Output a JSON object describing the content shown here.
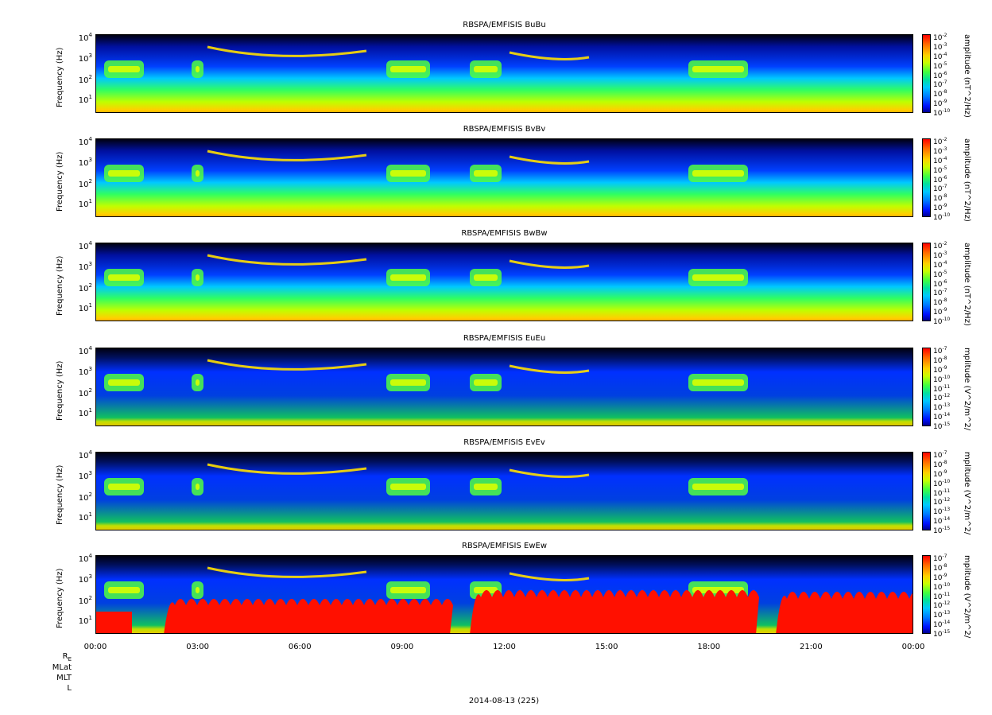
{
  "colors": {
    "background": "#ffffff",
    "axis": "#000000",
    "spectrogram_background": "#000000"
  },
  "chart_data": [
    {
      "type": "heatmap",
      "title": "RBSPA/EMFISIS  BuBu",
      "ylabel": "Frequency (Hz)",
      "yscale": "log",
      "yticks": [
        "10^1",
        "10^2",
        "10^3",
        "10^4"
      ],
      "colorbar_label": "amplitude (nT^2/Hz)",
      "colorbar_ticks": [
        "10^-2",
        "10^-3",
        "10^-4",
        "10^-5",
        "10^-6",
        "10^-7",
        "10^-8",
        "10^-9",
        "10^-10"
      ],
      "xlim": [
        "00:00",
        "00:00"
      ]
    },
    {
      "type": "heatmap",
      "title": "RBSPA/EMFISIS  BvBv",
      "ylabel": "Frequency (Hz)",
      "yscale": "log",
      "yticks": [
        "10^1",
        "10^2",
        "10^3",
        "10^4"
      ],
      "colorbar_label": "amplitude (nT^2/Hz)",
      "colorbar_ticks": [
        "10^-2",
        "10^-3",
        "10^-4",
        "10^-5",
        "10^-6",
        "10^-7",
        "10^-8",
        "10^-9",
        "10^-10"
      ],
      "xlim": [
        "00:00",
        "00:00"
      ]
    },
    {
      "type": "heatmap",
      "title": "RBSPA/EMFISIS  BwBw",
      "ylabel": "Frequency (Hz)",
      "yscale": "log",
      "yticks": [
        "10^1",
        "10^2",
        "10^3",
        "10^4"
      ],
      "colorbar_label": "amplitude (nT^2/Hz)",
      "colorbar_ticks": [
        "10^-2",
        "10^-3",
        "10^-4",
        "10^-5",
        "10^-6",
        "10^-7",
        "10^-8",
        "10^-9",
        "10^-10"
      ],
      "xlim": [
        "00:00",
        "00:00"
      ]
    },
    {
      "type": "heatmap",
      "title": "RBSPA/EMFISIS  EuEu",
      "ylabel": "Frequency (Hz)",
      "yscale": "log",
      "yticks": [
        "10^1",
        "10^2",
        "10^3",
        "10^4"
      ],
      "colorbar_label": "mplitude (V^2/m^2/",
      "colorbar_ticks": [
        "10^-7",
        "10^-8",
        "10^-9",
        "10^-10",
        "10^-11",
        "10^-12",
        "10^-13",
        "10^-14",
        "10^-15"
      ],
      "xlim": [
        "00:00",
        "00:00"
      ]
    },
    {
      "type": "heatmap",
      "title": "RBSPA/EMFISIS  EvEv",
      "ylabel": "Frequency (Hz)",
      "yscale": "log",
      "yticks": [
        "10^1",
        "10^2",
        "10^3",
        "10^4"
      ],
      "colorbar_label": "mplitude (V^2/m^2/",
      "colorbar_ticks": [
        "10^-7",
        "10^-8",
        "10^-9",
        "10^-10",
        "10^-11",
        "10^-12",
        "10^-13",
        "10^-14",
        "10^-15"
      ],
      "xlim": [
        "00:00",
        "00:00"
      ]
    },
    {
      "type": "heatmap",
      "title": "RBSPA/EMFISIS  EwEw",
      "ylabel": "Frequency (Hz)",
      "yscale": "log",
      "yticks": [
        "10^1",
        "10^2",
        "10^3",
        "10^4"
      ],
      "colorbar_label": "mplitude (V^2/m^2/",
      "colorbar_ticks": [
        "10^-7",
        "10^-8",
        "10^-9",
        "10^-10",
        "10^-11",
        "10^-12",
        "10^-13",
        "10^-14",
        "10^-15"
      ],
      "xlim": [
        "00:00",
        "00:00"
      ]
    }
  ],
  "x_axis": {
    "tick_labels": [
      "00:00",
      "03:00",
      "06:00",
      "09:00",
      "12:00",
      "15:00",
      "18:00",
      "21:00",
      "00:00"
    ]
  },
  "ephemeris_labels": [
    "R_E",
    "MLat",
    "MLT",
    "L"
  ],
  "footer": "2014-08-13 (225)"
}
